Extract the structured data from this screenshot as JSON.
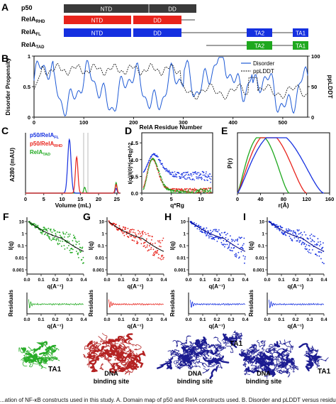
{
  "panel_a": {
    "letter": "A",
    "rows": [
      {
        "label": "p50",
        "sub": "",
        "domains": [
          {
            "name": "NTD",
            "color": "#3a3a3a"
          },
          {
            "name": "DD",
            "color": "#3a3a3a"
          }
        ]
      },
      {
        "label": "RelA",
        "sub": "RHD",
        "domains": [
          {
            "name": "NTD",
            "color": "#e8231c"
          },
          {
            "name": "DD",
            "color": "#e8231c"
          }
        ]
      },
      {
        "label": "RelA",
        "sub": "FL",
        "domains": [
          {
            "name": "NTD",
            "color": "#1530e0"
          },
          {
            "name": "DD",
            "color": "#1530e0"
          },
          {
            "name": "TA2",
            "color": "#1530e0"
          },
          {
            "name": "TA1",
            "color": "#1530e0"
          }
        ]
      },
      {
        "label": "RelA",
        "sub": "TAD",
        "domains": [
          {
            "name": "TA2",
            "color": "#1ea81e"
          },
          {
            "name": "TA1",
            "color": "#1ea81e"
          }
        ]
      }
    ]
  },
  "panel_b": {
    "letter": "B",
    "ylabel_left": "Disorder Propensity",
    "ylabel_right": "ppLDDT",
    "xlabel": "RelA Residue Number",
    "xticks": [
      "0",
      "100",
      "200",
      "300",
      "400",
      "500"
    ],
    "yticks_left": [
      "0",
      "0.5",
      "1"
    ],
    "yticks_right": [
      "0",
      "50",
      "100"
    ],
    "legend": [
      "Disorder",
      "ppLDDT"
    ]
  },
  "chart_data": [
    {
      "type": "line",
      "panel": "C",
      "xlabel": "Volume (mL)",
      "ylabel": "A280 (mAU)",
      "xticks": [
        "0",
        "5",
        "10",
        "15",
        "20",
        "25"
      ],
      "xlim": [
        0,
        26
      ],
      "legend": [
        "p50/RelA_FL",
        "p50/RelA_RHD",
        "RelA_TAD"
      ],
      "series": [
        {
          "name": "p50/RelA_FL",
          "color": "#1530e0",
          "peak_x": 12.0
        },
        {
          "name": "p50/RelA_RHD",
          "color": "#e8231c",
          "peak_x": 14.0
        },
        {
          "name": "RelA_TAD",
          "color": "#1ea81e",
          "peak_x": 16.2
        }
      ]
    },
    {
      "type": "scatter",
      "panel": "D",
      "xlabel": "q*Rg",
      "ylabel": "I(q)/I(0)*(q*Rg)^2",
      "xticks": [
        "0",
        "5",
        "10"
      ],
      "yticks": [
        "0.0",
        "0.5",
        "1.0",
        "1.5"
      ],
      "xlim": [
        0,
        12
      ],
      "ylim": [
        0,
        1.8
      ]
    },
    {
      "type": "line",
      "panel": "E",
      "xlabel": "r(Å)",
      "ylabel": "P(r)",
      "xticks": [
        "0",
        "40",
        "80",
        "120",
        "160"
      ],
      "xlim": [
        0,
        160
      ]
    }
  ],
  "saxs_panels": [
    {
      "letter": "F",
      "color": "#1ea81e",
      "fit_color": "#000000"
    },
    {
      "letter": "G",
      "color": "#e8231c",
      "fit_color": "#000000"
    },
    {
      "letter": "H",
      "color": "#1530e0",
      "fit_color": "#000080"
    },
    {
      "letter": "I",
      "color": "#1530e0",
      "fit_color": "#000080"
    }
  ],
  "saxs_axes": {
    "ylabel": "I(q)",
    "xlabel": "q(A⁻¹)",
    "xticks": [
      "0.0",
      "0.1",
      "0.2",
      "0.3",
      "0.4"
    ],
    "yticks": [
      "10",
      "1",
      "0.1",
      "0.01",
      "0.001"
    ],
    "resid_label": "Residuals"
  },
  "structures": {
    "labels": [
      "TA1",
      "DNA",
      "binding site",
      "DNA",
      "binding site",
      "TA1",
      "DNA",
      "binding site",
      "TA1"
    ]
  },
  "caption": "...ation of NF-κB constructs used in this study. A. Domain map of p50 and RelA constructs used. B. Disorder and pLDDT versus residue number..."
}
